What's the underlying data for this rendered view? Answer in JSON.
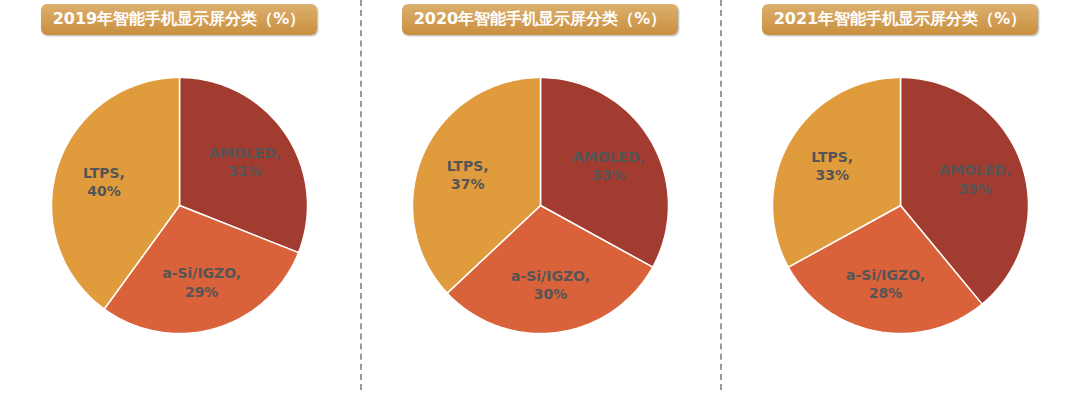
{
  "chart_data": [
    {
      "type": "pie",
      "title": "2019年智能手机显示屏分类（%）",
      "categories": [
        "AMOLED",
        "a-Si/IGZO",
        "LTPS"
      ],
      "values": [
        31,
        29,
        40
      ],
      "value_labels": [
        "AMOLED, 31%",
        "a-Si/IGZO, 29%",
        "LTPS, 40%"
      ],
      "colors": [
        "#a33c30",
        "#d9623a",
        "#e09c3c"
      ],
      "data_labels": true
    },
    {
      "type": "pie",
      "title": "2020年智能手机显示屏分类（%）",
      "categories": [
        "AMOLED",
        "a-Si/IGZO",
        "LTPS"
      ],
      "values": [
        33,
        30,
        37
      ],
      "value_labels": [
        "AMOLED, 33%",
        "a-Si/IGZO, 30%",
        "LTPS, 37%"
      ],
      "colors": [
        "#a33c30",
        "#d9623a",
        "#e09c3c"
      ],
      "data_labels": true
    },
    {
      "type": "pie",
      "title": "2021年智能手机显示屏分类（%）",
      "categories": [
        "AMOLED",
        "a-Si/IGZO",
        "LTPS"
      ],
      "values": [
        39,
        28,
        33
      ],
      "value_labels": [
        "AMOLED, 39%",
        "a-Si/IGZO, 28%",
        "LTPS, 33%"
      ],
      "colors": [
        "#a33c30",
        "#d9623a",
        "#e09c3c"
      ],
      "data_labels": true
    }
  ]
}
